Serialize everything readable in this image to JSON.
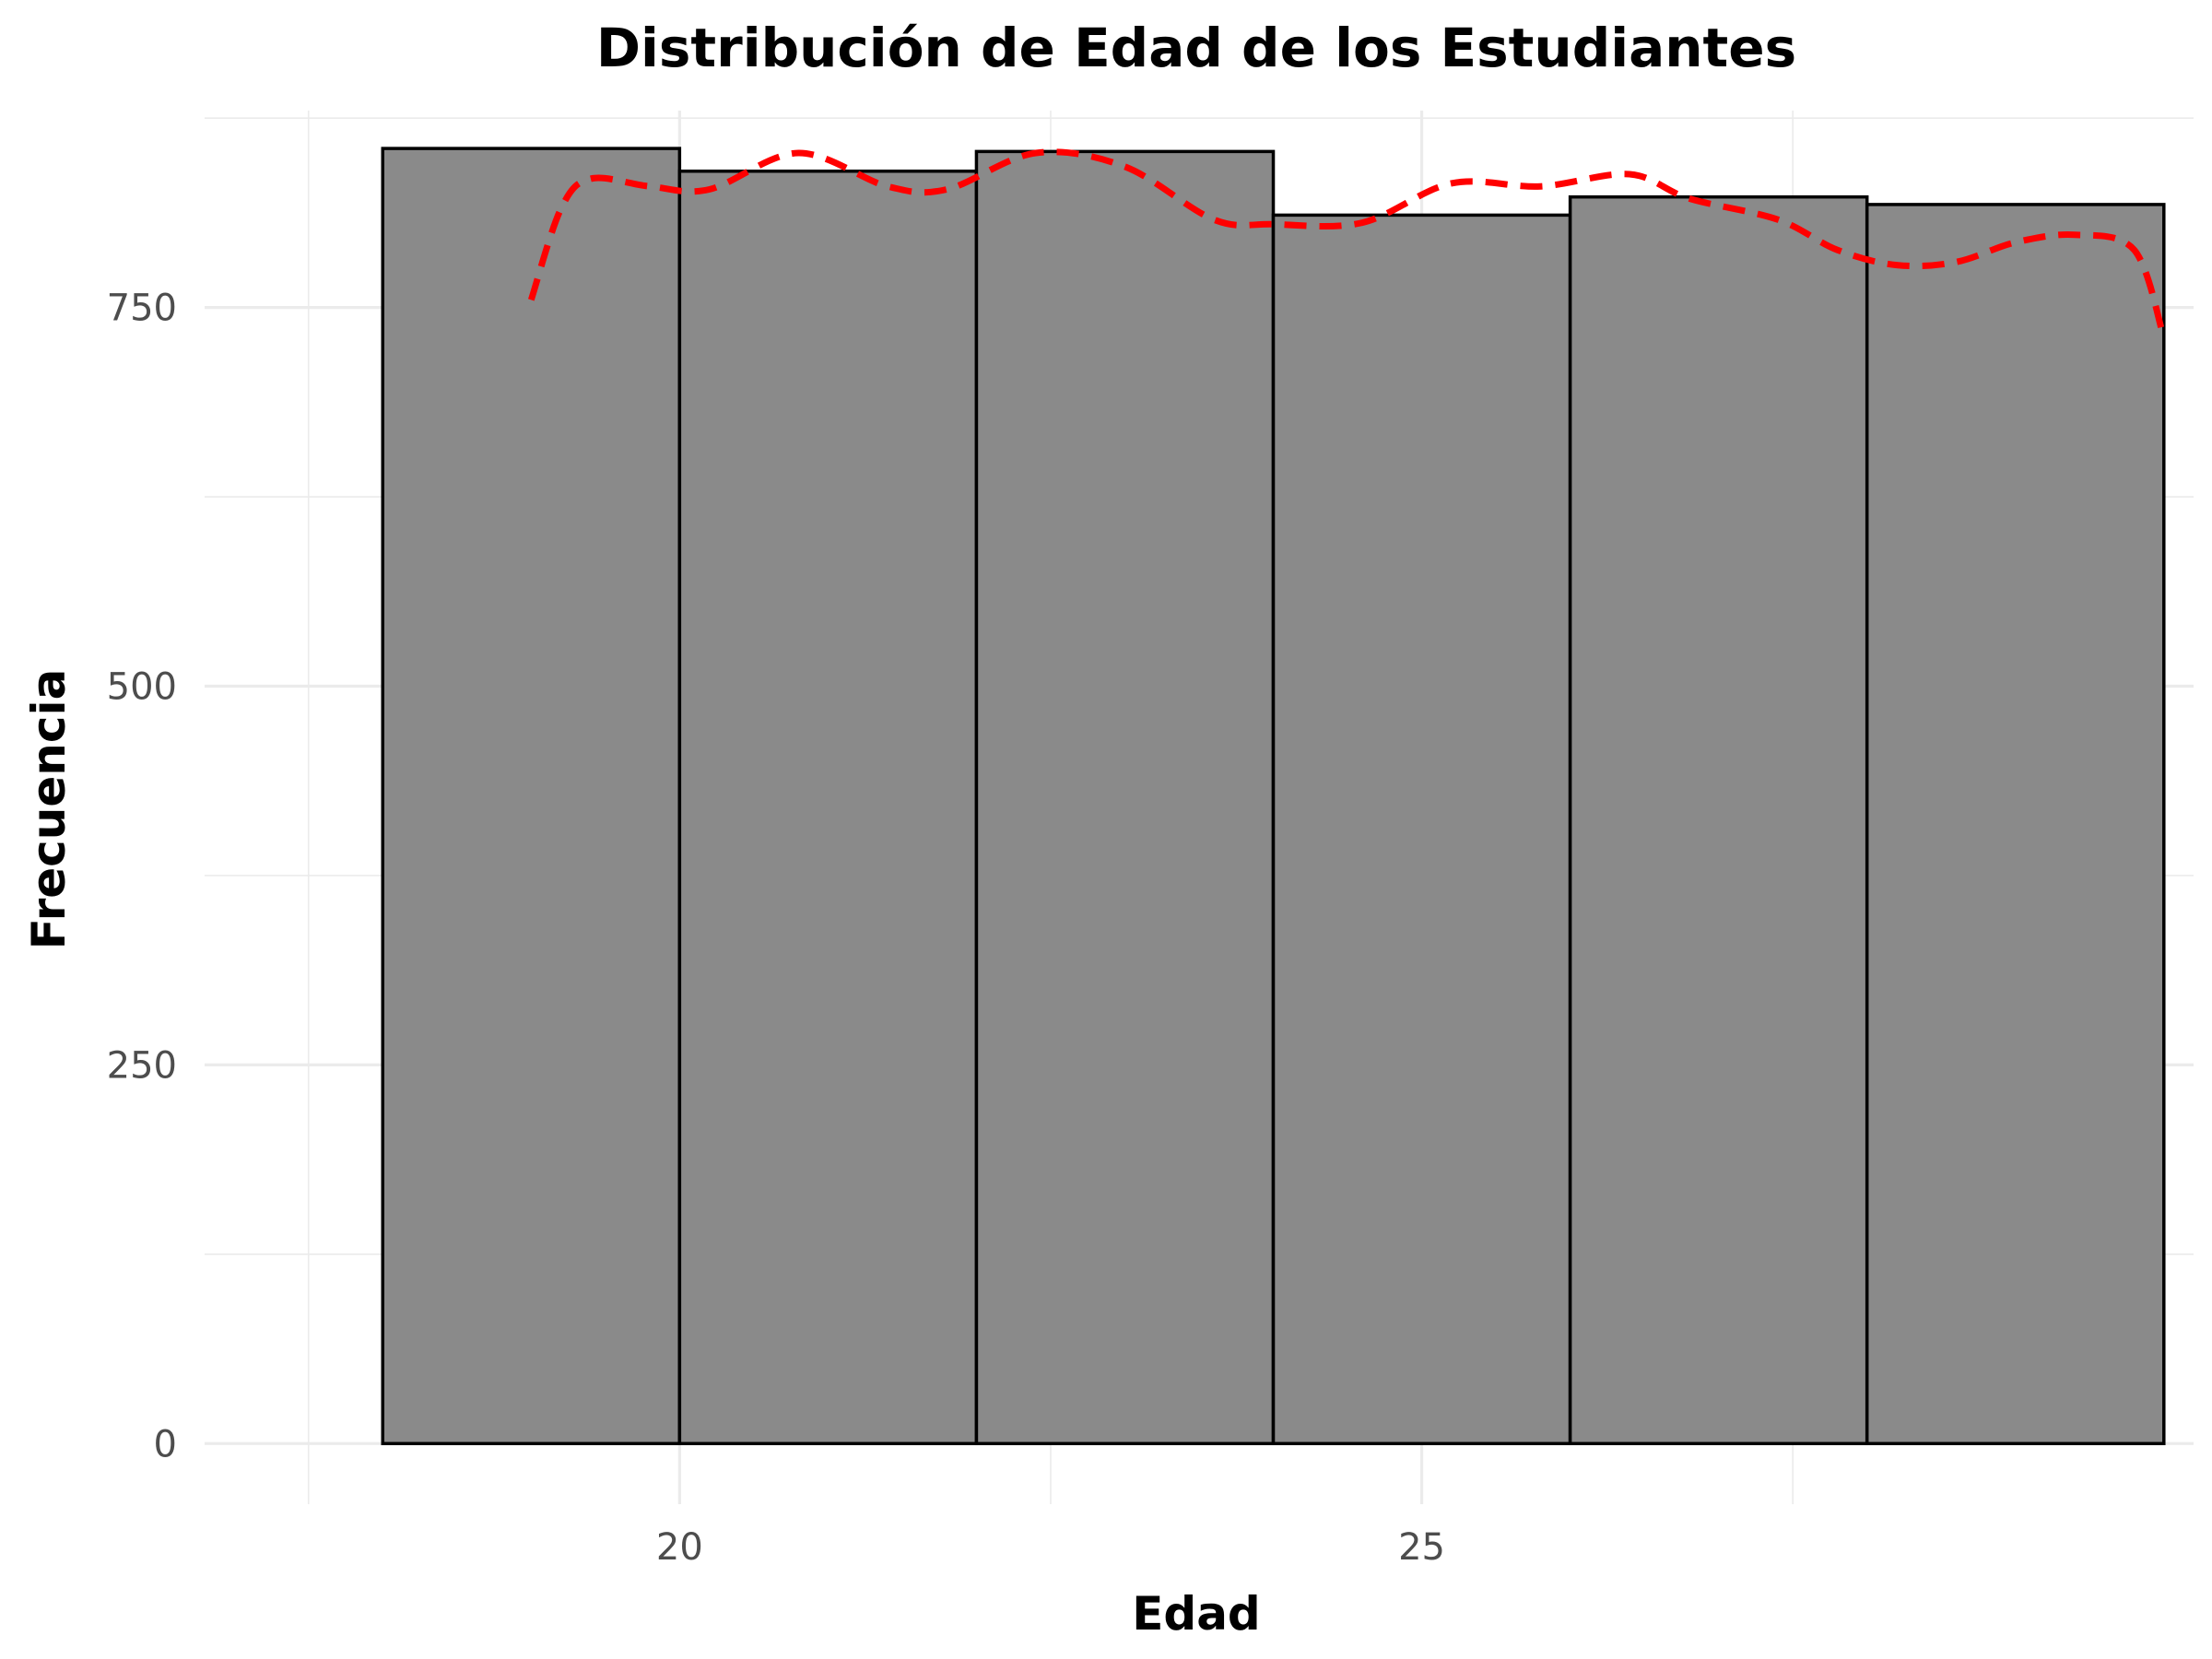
{
  "chart_data": {
    "type": "bar",
    "title": "Distribución de Edad de los Estudiantes",
    "xlabel": "Edad",
    "ylabel": "Frecuencia",
    "xlim": [
      16.8,
      30.2
    ],
    "ylim": [
      -40,
      880
    ],
    "x_ticks": [
      20,
      25
    ],
    "y_ticks": [
      0,
      250,
      500,
      750
    ],
    "grid": true,
    "legend": "none",
    "colors": {
      "bar_fill": "#8a8a8a",
      "bar_border": "#000000",
      "density_line": "#ff0000",
      "grid": "#ebebeb"
    },
    "bins": [
      {
        "start": 18,
        "end": 20,
        "count": 855
      },
      {
        "start": 20,
        "end": 22,
        "count": 840
      },
      {
        "start": 22,
        "end": 24,
        "count": 853
      },
      {
        "start": 24,
        "end": 26,
        "count": 811
      },
      {
        "start": 26,
        "end": 28,
        "count": 823
      },
      {
        "start": 28,
        "end": 30,
        "count": 818
      }
    ],
    "density_curve": {
      "style": "dashed",
      "x": [
        19,
        19.2,
        19.4,
        19.8,
        20.2,
        20.8,
        21.4,
        21.8,
        22.4,
        23.0,
        23.6,
        24.0,
        24.6,
        25.2,
        25.8,
        26.4,
        26.8,
        27.4,
        27.8,
        28.2,
        28.6,
        29.0,
        29.4,
        29.8,
        30.0
      ],
      "y": [
        755,
        815,
        835,
        830,
        828,
        852,
        830,
        828,
        852,
        843,
        808,
        805,
        806,
        832,
        830,
        838,
        822,
        808,
        788,
        778,
        780,
        793,
        798,
        788,
        730
      ]
    }
  }
}
